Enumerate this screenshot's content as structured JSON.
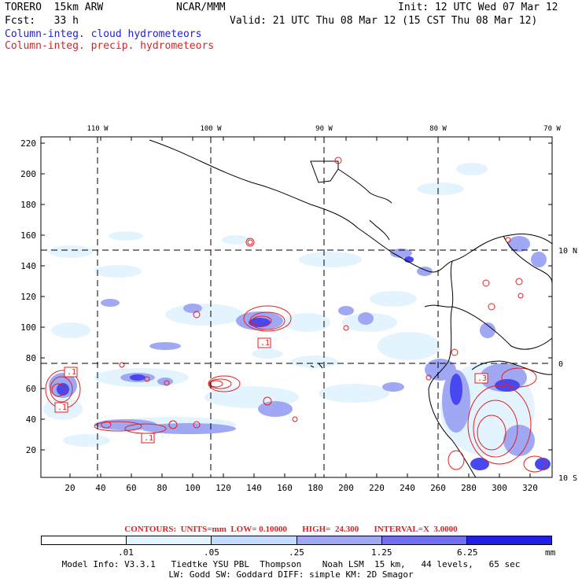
{
  "header": {
    "model": "TORERO  15km ARW",
    "center": "NCAR/MMM",
    "init": "Init: 12 UTC Wed 07 Mar 12",
    "fcst": "Fcst:   33 h",
    "valid": "Valid: 21 UTC Thu 08 Mar 12 (15 CST Thu 08 Mar 12)",
    "field_cloud": "Column-integ. cloud hydrometeors",
    "field_precip": "Column-integ. precip. hydrometeors"
  },
  "map": {
    "top_lon_labels": [
      "110 W",
      "100 W",
      "90 W",
      "80 W",
      "70 W"
    ],
    "right_lat_labels": [
      "10 N",
      "0",
      "10 S"
    ],
    "y_ticks": [
      "220",
      "200",
      "180",
      "160",
      "140",
      "120",
      "100",
      "80",
      "60",
      "40",
      "20"
    ],
    "x_ticks": [
      "20",
      "40",
      "60",
      "80",
      "100",
      "120",
      "140",
      "160",
      "180",
      "200",
      "220",
      "240",
      "260",
      "280",
      "300",
      "320"
    ],
    "contour_labels": [
      ".1",
      ".1",
      ".1",
      ".1",
      ".3"
    ],
    "colors": {
      "cloud": "#1f1fd0",
      "precip": "#e02020",
      "frame": "#000000"
    }
  },
  "legend": {
    "contours_text": "CONTOURS:  UNITS=mm  LOW= 0.10000       HIGH=  24.300       INTERVAL=X  3.0000",
    "levels": [
      ".01",
      ".05",
      ".25",
      "1.25",
      "6.25"
    ],
    "unit": "mm",
    "colors": [
      "#ffffff",
      "#e4f4ff",
      "#c4dcff",
      "#a0a8f4",
      "#7070f0",
      "#4848f0",
      "#2020e8"
    ]
  },
  "footer": {
    "line1": "Model Info: V3.3.1   Tiedtke YSU PBL  Thompson    Noah LSM  15 km,   44 levels,   65 sec",
    "line2": "LW: Godd SW: Goddard DIFF: simple KM: 2D Smagor"
  }
}
